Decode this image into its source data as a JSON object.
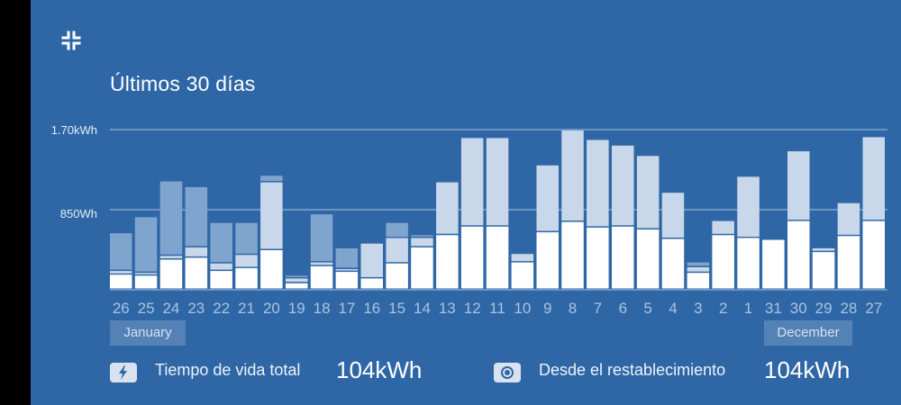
{
  "header": {
    "collapse_icon": "collapse-arrows-icon",
    "title": "Últimos 30 días"
  },
  "chart_data": {
    "type": "bar",
    "stacked": true,
    "y_unit": "kWh",
    "y_ticks": [
      "1.70kWh",
      "850Wh"
    ],
    "ylim": [
      0,
      1.7
    ],
    "grid": true,
    "colors": {
      "base": "#ffffff",
      "light": "#c8d8ea",
      "dark": "#7fa5cf"
    },
    "categories": [
      "26",
      "25",
      "24",
      "23",
      "22",
      "21",
      "20",
      "19",
      "18",
      "17",
      "16",
      "15",
      "14",
      "13",
      "12",
      "11",
      "10",
      "9",
      "8",
      "7",
      "6",
      "5",
      "4",
      "3",
      "2",
      "1",
      "31",
      "30",
      "29",
      "28",
      "27"
    ],
    "series": [
      {
        "values": [
          0.16,
          0.15,
          0.32,
          0.34,
          0.2,
          0.23,
          0.42,
          0.07,
          0.25,
          0.19,
          0.12,
          0.28,
          0.45,
          0.58,
          0.67,
          0.67,
          0.29,
          0.61,
          0.72,
          0.66,
          0.67,
          0.64,
          0.54,
          0.18,
          0.58,
          0.55,
          0.53,
          0.73,
          0.4,
          0.57,
          0.73
        ]
      },
      {
        "values": [
          0.04,
          0.03,
          0.04,
          0.11,
          0.08,
          0.14,
          0.72,
          0.05,
          0.04,
          0.03,
          0.37,
          0.27,
          0.1,
          0.56,
          0.94,
          0.94,
          0.09,
          0.71,
          0.97,
          0.93,
          0.86,
          0.78,
          0.49,
          0.06,
          0.15,
          0.65,
          0.0,
          0.74,
          0.04,
          0.35,
          0.89
        ]
      },
      {
        "values": [
          0.4,
          0.59,
          0.79,
          0.64,
          0.43,
          0.34,
          0.07,
          0.03,
          0.51,
          0.22,
          0.0,
          0.16,
          0.03,
          0.0,
          0.0,
          0.0,
          0.0,
          0.0,
          0.0,
          0.0,
          0.0,
          0.0,
          0.0,
          0.05,
          0.0,
          0.0,
          0.0,
          0.0,
          0.0,
          0.0,
          0.0
        ]
      }
    ],
    "month_labels": [
      {
        "text": "January"
      },
      {
        "text": "December"
      }
    ]
  },
  "footer": {
    "lifetime": {
      "icon": "lightning-icon",
      "label": "Tiempo de vida total",
      "value": "104kWh"
    },
    "reset": {
      "icon": "record-circle-icon",
      "label": "Desde el restablecimiento",
      "value": "104kWh"
    }
  }
}
